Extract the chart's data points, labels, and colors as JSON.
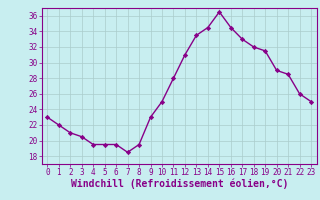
{
  "x": [
    0,
    1,
    2,
    3,
    4,
    5,
    6,
    7,
    8,
    9,
    10,
    11,
    12,
    13,
    14,
    15,
    16,
    17,
    18,
    19,
    20,
    21,
    22,
    23
  ],
  "y": [
    23.0,
    22.0,
    21.0,
    20.5,
    19.5,
    19.5,
    19.5,
    18.5,
    19.5,
    23.0,
    25.0,
    28.0,
    31.0,
    33.5,
    34.5,
    36.5,
    34.5,
    33.0,
    32.0,
    31.5,
    29.0,
    28.5,
    26.0,
    25.0
  ],
  "line_color": "#880088",
  "marker": "D",
  "marker_size": 2.2,
  "linewidth": 1.0,
  "bg_color": "#c8eef0",
  "plot_bg_color": "#c8eef0",
  "grid_color": "#aacccc",
  "xlabel": "Windchill (Refroidissement éolien,°C)",
  "xlabel_color": "#880088",
  "xlabel_fontsize": 7,
  "ylim": [
    17,
    37
  ],
  "xlim": [
    -0.5,
    23.5
  ],
  "yticks": [
    18,
    20,
    22,
    24,
    26,
    28,
    30,
    32,
    34,
    36
  ],
  "xticks": [
    0,
    1,
    2,
    3,
    4,
    5,
    6,
    7,
    8,
    9,
    10,
    11,
    12,
    13,
    14,
    15,
    16,
    17,
    18,
    19,
    20,
    21,
    22,
    23
  ],
  "tick_color": "#880088",
  "tick_fontsize": 5.5,
  "spine_color": "#880088"
}
